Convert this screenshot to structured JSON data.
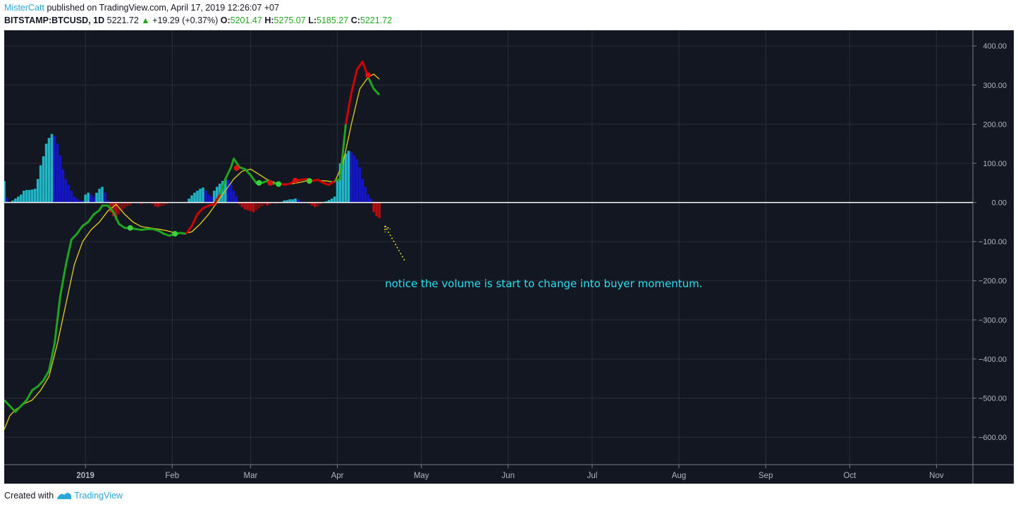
{
  "header": {
    "author": "MisterCatt",
    "published_text": "published on TradingView.com, April 17, 2019 12:26:07 +07",
    "symbol": "BITSTAMP:BTCUSD, 1D",
    "last": "5221.72",
    "change": "+19.29 (+0.37%)",
    "o_label": "O:",
    "o": "5201.47",
    "h_label": "H:",
    "h": "5275.07",
    "l_label": "L:",
    "l": "5185.27",
    "c_label": "C:",
    "c": "5221.72"
  },
  "footer": {
    "created_with": "Created with",
    "brand": "TradingView"
  },
  "colors": {
    "background": "#131722",
    "grid": "#2a2e39",
    "zero_line": "#ffffff",
    "fast_up": "#1fa51f",
    "fast_down": "#d00000",
    "slow": "#d8c320",
    "hist_pos_rising": "#1fb5c6",
    "hist_pos_falling": "#1414c8",
    "hist_neg_falling": "#b40e0e",
    "hist_neg_rising": "#7a1010",
    "annotation": "#27e1f0",
    "arrow": "#e7e22a"
  },
  "chart_data": {
    "type": "line",
    "ylim": [
      -670,
      440
    ],
    "y_ticks": [
      400,
      300,
      200,
      100,
      0,
      -100,
      -200,
      -300,
      -400,
      -500,
      -600
    ],
    "y_tick_labels": [
      "400.00",
      "300.00",
      "200.00",
      "100.00",
      "0.00",
      "−100.00",
      "−200.00",
      "−300.00",
      "−400.00",
      "−500.00",
      "−600.00"
    ],
    "x_ticks": [
      {
        "x": 0,
        "label": "2019",
        "bold": true
      },
      {
        "x": 31,
        "label": "Feb",
        "bold": false
      },
      {
        "x": 59,
        "label": "Mar",
        "bold": false
      },
      {
        "x": 90,
        "label": "Apr",
        "bold": false
      },
      {
        "x": 120,
        "label": "May",
        "bold": false
      },
      {
        "x": 151,
        "label": "Jun",
        "bold": false
      },
      {
        "x": 181,
        "label": "Jul",
        "bold": false
      },
      {
        "x": 212,
        "label": "Aug",
        "bold": false
      },
      {
        "x": 243,
        "label": "Sep",
        "bold": false
      },
      {
        "x": 273,
        "label": "Oct",
        "bold": false
      },
      {
        "x": 304,
        "label": "Nov",
        "bold": false
      }
    ],
    "xlim": [
      -29,
      317
    ],
    "series": [
      {
        "points": [
          [
            -29,
            -505
          ],
          [
            -27,
            -520
          ],
          [
            -25,
            -535
          ],
          [
            -23,
            -520
          ],
          [
            -21,
            -505
          ],
          [
            -19,
            -480
          ],
          [
            -17,
            -470
          ],
          [
            -15,
            -455
          ],
          [
            -13,
            -430
          ],
          [
            -11,
            -360
          ],
          [
            -9,
            -240
          ],
          [
            -7,
            -160
          ],
          [
            -5,
            -95
          ],
          [
            -3,
            -80
          ],
          [
            -1,
            -60
          ],
          [
            1,
            -50
          ],
          [
            3,
            -30
          ],
          [
            5,
            -20
          ],
          [
            6,
            -8
          ],
          [
            8,
            -8
          ],
          [
            10,
            -25
          ],
          [
            12,
            -55
          ],
          [
            14,
            -65
          ],
          [
            16,
            -65
          ],
          [
            18,
            -68
          ],
          [
            20,
            -70
          ],
          [
            22,
            -68
          ],
          [
            24,
            -68
          ],
          [
            26,
            -72
          ],
          [
            28,
            -80
          ],
          [
            30,
            -85
          ],
          [
            32,
            -80
          ],
          [
            34,
            -78
          ],
          [
            36,
            -80
          ],
          [
            38,
            -60
          ],
          [
            40,
            -30
          ],
          [
            42,
            -15
          ],
          [
            44,
            -8
          ],
          [
            46,
            -5
          ],
          [
            48,
            20
          ],
          [
            50,
            60
          ],
          [
            52,
            90
          ],
          [
            53,
            112
          ],
          [
            55,
            90
          ],
          [
            57,
            85
          ],
          [
            59,
            70
          ],
          [
            61,
            50
          ],
          [
            63,
            50
          ],
          [
            65,
            55
          ],
          [
            67,
            48
          ],
          [
            69,
            50
          ],
          [
            71,
            45
          ],
          [
            73,
            48
          ],
          [
            75,
            55
          ],
          [
            77,
            58
          ],
          [
            79,
            60
          ],
          [
            81,
            55
          ],
          [
            83,
            58
          ],
          [
            85,
            50
          ],
          [
            87,
            45
          ],
          [
            89,
            55
          ],
          [
            91,
            60
          ],
          [
            93,
            200
          ],
          [
            95,
            280
          ],
          [
            97,
            340
          ],
          [
            99,
            360
          ],
          [
            101,
            320
          ],
          [
            103,
            290
          ],
          [
            105,
            275
          ]
        ],
        "segments": [
          "up",
          0,
          33,
          "down",
          33,
          39,
          "up",
          39,
          50,
          "down",
          50,
          60,
          "up",
          60,
          62,
          "down",
          62,
          66,
          "up",
          66,
          71,
          "down",
          71,
          73
        ]
      },
      {
        "points": [
          [
            -29,
            -580
          ],
          [
            -27,
            -545
          ],
          [
            -25,
            -530
          ],
          [
            -22,
            -515
          ],
          [
            -19,
            -505
          ],
          [
            -16,
            -480
          ],
          [
            -13,
            -445
          ],
          [
            -10,
            -360
          ],
          [
            -7,
            -260
          ],
          [
            -4,
            -160
          ],
          [
            -1,
            -100
          ],
          [
            2,
            -70
          ],
          [
            5,
            -50
          ],
          [
            8,
            -22
          ],
          [
            11,
            -5
          ],
          [
            14,
            -30
          ],
          [
            17,
            -50
          ],
          [
            20,
            -62
          ],
          [
            23,
            -65
          ],
          [
            26,
            -68
          ],
          [
            29,
            -72
          ],
          [
            32,
            -78
          ],
          [
            35,
            -80
          ],
          [
            38,
            -75
          ],
          [
            41,
            -55
          ],
          [
            44,
            -30
          ],
          [
            47,
            0
          ],
          [
            50,
            30
          ],
          [
            53,
            60
          ],
          [
            56,
            80
          ],
          [
            59,
            85
          ],
          [
            62,
            72
          ],
          [
            65,
            58
          ],
          [
            68,
            50
          ],
          [
            71,
            47
          ],
          [
            74,
            48
          ],
          [
            77,
            52
          ],
          [
            80,
            57
          ],
          [
            83,
            56
          ],
          [
            86,
            55
          ],
          [
            89,
            52
          ],
          [
            92,
            100
          ],
          [
            95,
            200
          ],
          [
            98,
            290
          ],
          [
            101,
            320
          ],
          [
            103,
            328
          ],
          [
            105,
            315
          ]
        ]
      }
    ],
    "histogram": [
      [
        -29,
        55,
        "rise"
      ],
      [
        -28,
        12,
        "fall"
      ],
      [
        -27,
        0,
        "fall"
      ],
      [
        -26,
        5,
        "rise"
      ],
      [
        -25,
        10,
        "rise"
      ],
      [
        -24,
        15,
        "rise"
      ],
      [
        -23,
        20,
        "rise"
      ],
      [
        -22,
        30,
        "rise"
      ],
      [
        -21,
        32,
        "rise"
      ],
      [
        -20,
        32,
        "rise"
      ],
      [
        -19,
        33,
        "rise"
      ],
      [
        -18,
        35,
        "rise"
      ],
      [
        -17,
        60,
        "rise"
      ],
      [
        -16,
        95,
        "rise"
      ],
      [
        -15,
        118,
        "rise"
      ],
      [
        -14,
        150,
        "rise"
      ],
      [
        -13,
        165,
        "rise"
      ],
      [
        -12,
        175,
        "rise"
      ],
      [
        -11,
        170,
        "fall"
      ],
      [
        -10,
        150,
        "fall"
      ],
      [
        -9,
        120,
        "fall"
      ],
      [
        -8,
        85,
        "fall"
      ],
      [
        -7,
        60,
        "fall"
      ],
      [
        -6,
        45,
        "fall"
      ],
      [
        -5,
        30,
        "fall"
      ],
      [
        -4,
        15,
        "fall"
      ],
      [
        -3,
        10,
        "fall"
      ],
      [
        -2,
        5,
        "fall"
      ],
      [
        -1,
        5,
        "fall"
      ],
      [
        0,
        20,
        "rise"
      ],
      [
        1,
        25,
        "rise"
      ],
      [
        2,
        20,
        "fall"
      ],
      [
        3,
        15,
        "fall"
      ],
      [
        4,
        25,
        "rise"
      ],
      [
        5,
        35,
        "rise"
      ],
      [
        6,
        40,
        "rise"
      ],
      [
        7,
        25,
        "fall"
      ],
      [
        8,
        5,
        "fall"
      ],
      [
        9,
        -25,
        "nfall"
      ],
      [
        10,
        -35,
        "nfall"
      ],
      [
        11,
        -45,
        "nfall"
      ],
      [
        12,
        -30,
        "nrise"
      ],
      [
        13,
        -20,
        "nrise"
      ],
      [
        14,
        -15,
        "nrise"
      ],
      [
        15,
        -10,
        "nrise"
      ],
      [
        16,
        -8,
        "nrise"
      ],
      [
        20,
        -5,
        "nrise"
      ],
      [
        24,
        -5,
        "nrise"
      ],
      [
        25,
        -10,
        "nfall"
      ],
      [
        26,
        -12,
        "nfall"
      ],
      [
        27,
        -10,
        "nrise"
      ],
      [
        28,
        -8,
        "nrise"
      ],
      [
        29,
        -5,
        "nrise"
      ],
      [
        37,
        10,
        "rise"
      ],
      [
        38,
        18,
        "rise"
      ],
      [
        39,
        25,
        "rise"
      ],
      [
        40,
        30,
        "rise"
      ],
      [
        41,
        35,
        "rise"
      ],
      [
        42,
        38,
        "rise"
      ],
      [
        43,
        30,
        "fall"
      ],
      [
        44,
        20,
        "fall"
      ],
      [
        45,
        15,
        "fall"
      ],
      [
        46,
        30,
        "rise"
      ],
      [
        47,
        40,
        "rise"
      ],
      [
        48,
        48,
        "rise"
      ],
      [
        49,
        55,
        "rise"
      ],
      [
        50,
        60,
        "rise"
      ],
      [
        51,
        58,
        "fall"
      ],
      [
        52,
        50,
        "fall"
      ],
      [
        53,
        30,
        "fall"
      ],
      [
        54,
        15,
        "fall"
      ],
      [
        55,
        -5,
        "nfall"
      ],
      [
        56,
        -12,
        "nfall"
      ],
      [
        57,
        -18,
        "nfall"
      ],
      [
        58,
        -20,
        "nfall"
      ],
      [
        59,
        -22,
        "nfall"
      ],
      [
        60,
        -25,
        "nfall"
      ],
      [
        61,
        -20,
        "nrise"
      ],
      [
        62,
        -15,
        "nrise"
      ],
      [
        63,
        -10,
        "nrise"
      ],
      [
        64,
        -5,
        "nrise"
      ],
      [
        65,
        -8,
        "nfall"
      ],
      [
        66,
        -5,
        "nrise"
      ],
      [
        68,
        -3,
        "nrise"
      ],
      [
        71,
        5,
        "rise"
      ],
      [
        72,
        6,
        "rise"
      ],
      [
        73,
        8,
        "rise"
      ],
      [
        74,
        8,
        "rise"
      ],
      [
        75,
        10,
        "rise"
      ],
      [
        76,
        8,
        "fall"
      ],
      [
        77,
        3,
        "fall"
      ],
      [
        80,
        -3,
        "nfall"
      ],
      [
        81,
        -8,
        "nfall"
      ],
      [
        82,
        -12,
        "nfall"
      ],
      [
        83,
        -10,
        "nrise"
      ],
      [
        84,
        -5,
        "nrise"
      ],
      [
        86,
        3,
        "rise"
      ],
      [
        87,
        6,
        "rise"
      ],
      [
        88,
        10,
        "rise"
      ],
      [
        89,
        15,
        "rise"
      ],
      [
        90,
        60,
        "rise"
      ],
      [
        91,
        100,
        "rise"
      ],
      [
        92,
        118,
        "rise"
      ],
      [
        93,
        125,
        "rise"
      ],
      [
        94,
        132,
        "rise"
      ],
      [
        95,
        130,
        "fall"
      ],
      [
        96,
        120,
        "fall"
      ],
      [
        97,
        110,
        "fall"
      ],
      [
        98,
        90,
        "fall"
      ],
      [
        99,
        60,
        "fall"
      ],
      [
        100,
        40,
        "fall"
      ],
      [
        101,
        20,
        "fall"
      ],
      [
        102,
        10,
        "fall"
      ],
      [
        103,
        -25,
        "nfall"
      ],
      [
        104,
        -35,
        "nfall"
      ],
      [
        105,
        -40,
        "nfall"
      ]
    ],
    "cross_markers": [
      [
        16,
        -65,
        "up"
      ],
      [
        32,
        -80,
        "up"
      ],
      [
        54,
        88,
        "down"
      ],
      [
        62,
        50,
        "up"
      ],
      [
        66,
        50,
        "down"
      ],
      [
        69,
        47,
        "up"
      ],
      [
        75,
        56,
        "down"
      ],
      [
        80,
        55,
        "up"
      ],
      [
        101,
        325,
        "down"
      ]
    ],
    "annotation": {
      "text": "notice the volume is start to change into buyer momentum.",
      "x": 107,
      "y": -217
    },
    "arrow": {
      "from": [
        114,
        -148
      ],
      "to": [
        107,
        -60
      ]
    }
  }
}
